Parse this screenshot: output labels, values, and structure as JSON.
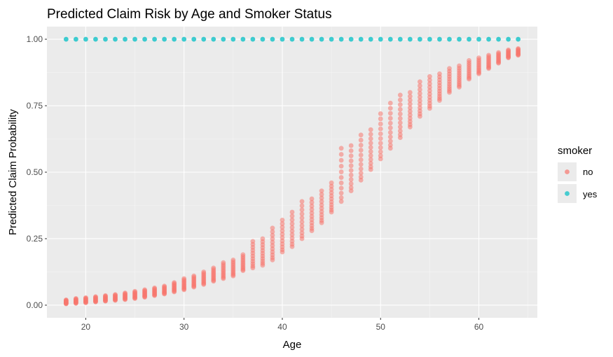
{
  "chart_data": {
    "type": "scatter",
    "title": "Predicted Claim Risk by Age and Smoker Status",
    "xlabel": "Age",
    "ylabel": "Predicted Claim Probability",
    "xlim": [
      16.05,
      65.95
    ],
    "ylim": [
      -0.0475,
      1.0475
    ],
    "x_ticks": [
      20,
      30,
      40,
      50,
      60
    ],
    "y_ticks": [
      0,
      0.25,
      0.5,
      0.75,
      1
    ],
    "x_tick_labels": [
      "20",
      "30",
      "40",
      "50",
      "60"
    ],
    "y_tick_labels": [
      "0.00",
      "0.25",
      "0.50",
      "0.75",
      "1.00"
    ],
    "grid": true,
    "legend": {
      "title": "smoker",
      "position": "right",
      "entries": [
        {
          "label": "no",
          "color": "#F8766D"
        },
        {
          "label": "yes",
          "color": "#00BFC4"
        }
      ]
    },
    "colors": {
      "panel": "#EBEBEB",
      "grid_major": "#FFFFFF",
      "grid_minor": "#F5F5F5",
      "no": "#F8766D",
      "yes": "#00BFC4"
    },
    "series": [
      {
        "name": "no",
        "color": "#F8766D",
        "ages": [
          18,
          19,
          20,
          21,
          22,
          23,
          24,
          25,
          26,
          27,
          28,
          29,
          30,
          31,
          32,
          33,
          34,
          35,
          36,
          37,
          38,
          39,
          40,
          41,
          42,
          43,
          44,
          45,
          46,
          47,
          48,
          49,
          50,
          51,
          52,
          53,
          54,
          55,
          56,
          57,
          58,
          59,
          60,
          61,
          62,
          63,
          64
        ],
        "min": [
          0.005,
          0.007,
          0.009,
          0.012,
          0.015,
          0.018,
          0.021,
          0.025,
          0.03,
          0.036,
          0.042,
          0.05,
          0.058,
          0.068,
          0.078,
          0.09,
          0.1,
          0.11,
          0.13,
          0.14,
          0.15,
          0.17,
          0.2,
          0.22,
          0.25,
          0.28,
          0.31,
          0.35,
          0.39,
          0.43,
          0.47,
          0.51,
          0.55,
          0.59,
          0.63,
          0.67,
          0.71,
          0.74,
          0.77,
          0.8,
          0.82,
          0.85,
          0.87,
          0.89,
          0.91,
          0.93,
          0.94
        ],
        "max": [
          0.02,
          0.025,
          0.028,
          0.032,
          0.036,
          0.04,
          0.046,
          0.052,
          0.058,
          0.065,
          0.072,
          0.085,
          0.1,
          0.11,
          0.125,
          0.14,
          0.16,
          0.17,
          0.19,
          0.24,
          0.25,
          0.29,
          0.32,
          0.35,
          0.39,
          0.4,
          0.43,
          0.46,
          0.59,
          0.6,
          0.64,
          0.66,
          0.72,
          0.76,
          0.79,
          0.8,
          0.84,
          0.86,
          0.87,
          0.89,
          0.9,
          0.92,
          0.93,
          0.94,
          0.95,
          0.96,
          0.965
        ]
      },
      {
        "name": "yes",
        "color": "#00BFC4",
        "ages": [
          18,
          19,
          20,
          21,
          22,
          23,
          24,
          25,
          26,
          27,
          28,
          29,
          30,
          31,
          32,
          33,
          34,
          35,
          36,
          37,
          38,
          39,
          40,
          41,
          42,
          43,
          44,
          45,
          46,
          47,
          48,
          49,
          50,
          51,
          52,
          53,
          54,
          55,
          56,
          57,
          58,
          59,
          60,
          61,
          62,
          63,
          64
        ],
        "value": 1.0
      }
    ]
  }
}
